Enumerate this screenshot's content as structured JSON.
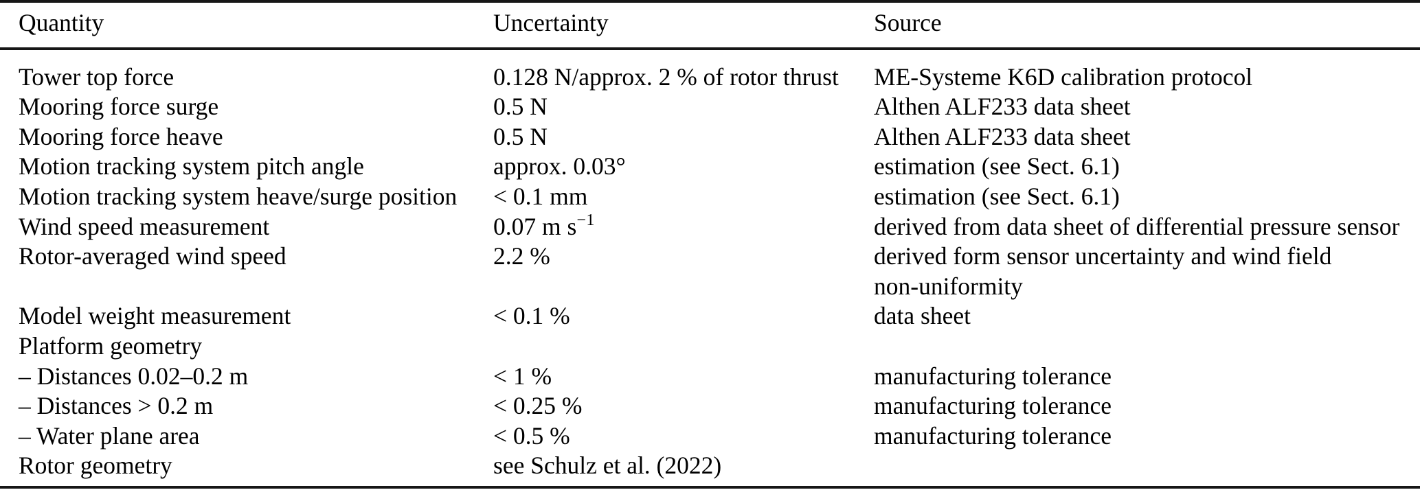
{
  "table": {
    "columns": [
      "Quantity",
      "Uncertainty",
      "Source"
    ],
    "rows": [
      {
        "quantity": "Tower top force",
        "uncertainty": "0.128 N/approx. 2 % of rotor thrust",
        "source": "ME-Systeme K6D calibration protocol"
      },
      {
        "quantity": "Mooring force surge",
        "uncertainty": "0.5 N",
        "source": "Althen ALF233 data sheet"
      },
      {
        "quantity": "Mooring force heave",
        "uncertainty": "0.5 N",
        "source": "Althen ALF233 data sheet"
      },
      {
        "quantity": "Motion tracking system pitch angle",
        "uncertainty": "approx. 0.03°",
        "source": "estimation (see Sect. 6.1)"
      },
      {
        "quantity": "Motion tracking system heave/surge position",
        "uncertainty": "< 0.1 mm",
        "source": "estimation (see Sect. 6.1)"
      },
      {
        "quantity": "Wind speed measurement",
        "uncertainty": "0.07 m s",
        "uncertainty_sup": "−1",
        "source": "derived from data sheet of differential pressure sensor"
      },
      {
        "quantity": "Rotor-averaged wind speed",
        "uncertainty": "2.2 %",
        "source": "derived form sensor uncertainty and wind field",
        "source_line2": "non-uniformity"
      },
      {
        "quantity": "Model weight measurement",
        "uncertainty": "< 0.1 %",
        "source": "data sheet"
      },
      {
        "quantity": "Platform geometry",
        "uncertainty": "",
        "source": ""
      },
      {
        "quantity": "– Distances 0.02–0.2 m",
        "uncertainty": "< 1 %",
        "source": "manufacturing tolerance"
      },
      {
        "quantity": "– Distances > 0.2 m",
        "uncertainty": "< 0.25 %",
        "source": "manufacturing tolerance"
      },
      {
        "quantity": "– Water plane area",
        "uncertainty": "< 0.5 %",
        "source": "manufacturing tolerance"
      },
      {
        "quantity": "Rotor geometry",
        "uncertainty": "see Schulz et al. (2022)",
        "source": ""
      }
    ],
    "text_color": "#000000",
    "rule_color": "#161616",
    "background_color": "#ffffff"
  }
}
